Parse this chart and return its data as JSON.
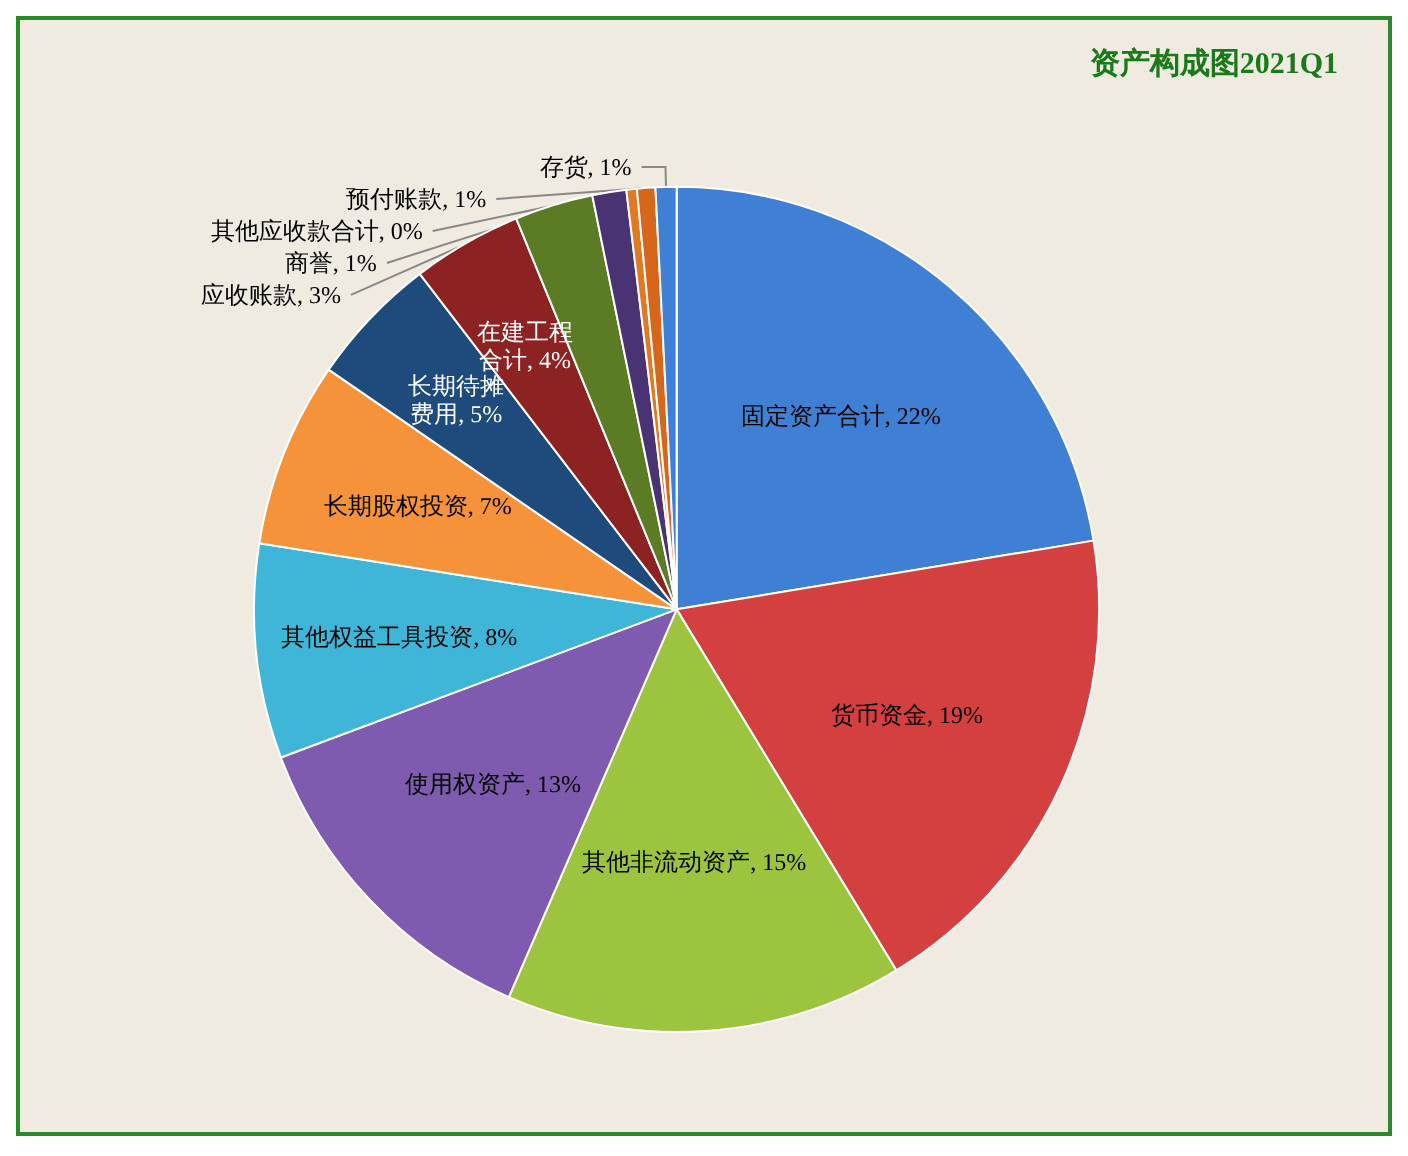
{
  "chart_data": {
    "type": "pie",
    "title": "资产构成图2021Q1",
    "categories": [
      "固定资产合计",
      "货币资金",
      "其他非流动资产",
      "使用权资产",
      "其他权益工具投资",
      "长期股权投资",
      "长期待摊费用",
      "在建工程合计",
      "应收账款",
      "商誉",
      "其他应收款合计",
      "预付账款",
      "存货"
    ],
    "values": [
      22.4,
      18.9,
      15.2,
      12.8,
      8.2,
      7.1,
      5.0,
      4.2,
      3.0,
      1.3,
      0.4,
      0.7,
      0.8
    ],
    "value_labels": [
      "22%",
      "19%",
      "15%",
      "13%",
      "8%",
      "7%",
      "5%",
      "4%",
      "3%",
      "1%",
      "0%",
      "1%",
      "1%"
    ],
    "colors": [
      "#3f80d4",
      "#d4403f",
      "#9cc43f",
      "#7e5bae",
      "#3fb6d8",
      "#f5923a",
      "#1f4a7c",
      "#8c2222",
      "#5b7b25",
      "#4a3372",
      "#e07a20",
      "#d8661a",
      "#3f80d4"
    ],
    "legend": false
  }
}
